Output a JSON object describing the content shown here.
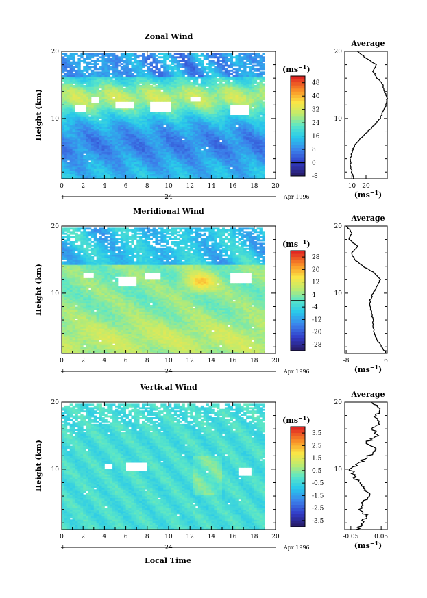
{
  "figure": {
    "xlabel": "Local Time",
    "date_label": "Apr 1996",
    "day_label": "24",
    "unit_label": "(ms",
    "unit_exponent": "−1",
    "unit_close": ")",
    "avg_unit_label": "(ms",
    "avg_unit_exponent": "−1",
    "avg_unit_close": ")"
  },
  "chart_data": [
    {
      "type": "heatmap",
      "name": "zonal",
      "title": "Zonal Wind",
      "ylabel": "Height (km)",
      "xlim": [
        0,
        20
      ],
      "ylim": [
        1,
        20
      ],
      "xticks": [
        0,
        2,
        4,
        6,
        8,
        10,
        12,
        14,
        16,
        18,
        20
      ],
      "yticks": [
        10,
        20
      ],
      "data_x_end": 19,
      "colorbar": {
        "ticks": [
          "48",
          "40",
          "32",
          "24",
          "16",
          "8",
          "0",
          "-8"
        ],
        "range": [
          -8,
          52
        ],
        "zero_line": 0
      },
      "profile": {
        "title": "Average",
        "xlim": [
          5,
          35
        ],
        "xticks": [
          10,
          20
        ],
        "yticks": [
          10,
          20
        ],
        "points": [
          [
            11,
            1
          ],
          [
            10,
            2
          ],
          [
            9,
            3
          ],
          [
            9,
            4
          ],
          [
            10,
            5
          ],
          [
            12,
            6
          ],
          [
            16,
            7
          ],
          [
            21,
            8
          ],
          [
            26,
            9
          ],
          [
            30,
            10
          ],
          [
            32,
            11
          ],
          [
            34,
            12
          ],
          [
            35,
            13
          ],
          [
            33,
            14
          ],
          [
            32,
            15
          ],
          [
            28,
            16
          ],
          [
            25,
            17
          ],
          [
            27,
            18
          ],
          [
            20,
            19
          ],
          [
            14,
            20
          ]
        ]
      }
    },
    {
      "type": "heatmap",
      "name": "meridional",
      "title": "Meridional Wind",
      "ylabel": "Height (km)",
      "xlim": [
        0,
        20
      ],
      "ylim": [
        1,
        20
      ],
      "xticks": [
        0,
        2,
        4,
        6,
        8,
        10,
        12,
        14,
        16,
        18,
        20
      ],
      "yticks": [
        10,
        20
      ],
      "data_x_end": 19,
      "colorbar": {
        "ticks": [
          "28",
          "20",
          "12",
          "4",
          "-4",
          "-12",
          "-20",
          "-28"
        ],
        "range": [
          -32,
          32
        ],
        "zero_line": 0
      },
      "profile": {
        "title": "Average",
        "xlim": [
          -8.5,
          6.5
        ],
        "xticks": [
          -8,
          6
        ],
        "yticks": [
          10,
          20
        ],
        "points": [
          [
            6,
            1
          ],
          [
            4.5,
            2
          ],
          [
            3,
            3
          ],
          [
            2,
            4
          ],
          [
            1.5,
            5
          ],
          [
            1.5,
            6
          ],
          [
            1,
            7
          ],
          [
            0.5,
            8
          ],
          [
            0.5,
            9
          ],
          [
            1.5,
            10
          ],
          [
            3,
            11
          ],
          [
            4,
            12
          ],
          [
            2,
            13
          ],
          [
            -2,
            14
          ],
          [
            -5,
            15
          ],
          [
            -6,
            16
          ],
          [
            -4,
            17
          ],
          [
            -7,
            18
          ],
          [
            -6,
            19
          ],
          [
            -8,
            20
          ]
        ]
      }
    },
    {
      "type": "heatmap",
      "name": "vertical",
      "title": "Vertical Wind",
      "ylabel": "Height (km)",
      "xlim": [
        0,
        20
      ],
      "ylim": [
        1,
        20
      ],
      "xticks": [
        0,
        2,
        4,
        6,
        8,
        10,
        12,
        14,
        16,
        18,
        20
      ],
      "yticks": [
        10,
        20
      ],
      "data_x_end": 19,
      "colorbar": {
        "ticks": [
          "3.5",
          "2.5",
          "1.5",
          "0.5",
          "-0.5",
          "-1.5",
          "-2.5",
          "-3.5"
        ],
        "range": [
          -4,
          4
        ],
        "zero_line": null
      },
      "profile": {
        "title": "Average",
        "xlim": [
          -0.07,
          0.07
        ],
        "xticks": [
          -0.05,
          0.05
        ],
        "tick_labels": [
          "-0.05",
          "0.05"
        ],
        "yticks": [
          10,
          20
        ],
        "points": [
          [
            -0.03,
            1
          ],
          [
            -0.01,
            2
          ],
          [
            0.0,
            3
          ],
          [
            -0.02,
            4
          ],
          [
            -0.01,
            5
          ],
          [
            0.01,
            6
          ],
          [
            0.0,
            7
          ],
          [
            -0.02,
            8
          ],
          [
            -0.04,
            9
          ],
          [
            -0.05,
            10
          ],
          [
            -0.02,
            11
          ],
          [
            0.01,
            12
          ],
          [
            0.03,
            13
          ],
          [
            0.0,
            14
          ],
          [
            0.04,
            15
          ],
          [
            0.02,
            16
          ],
          [
            0.05,
            17
          ],
          [
            0.03,
            18
          ],
          [
            0.05,
            19
          ],
          [
            0.02,
            20
          ]
        ]
      }
    }
  ]
}
